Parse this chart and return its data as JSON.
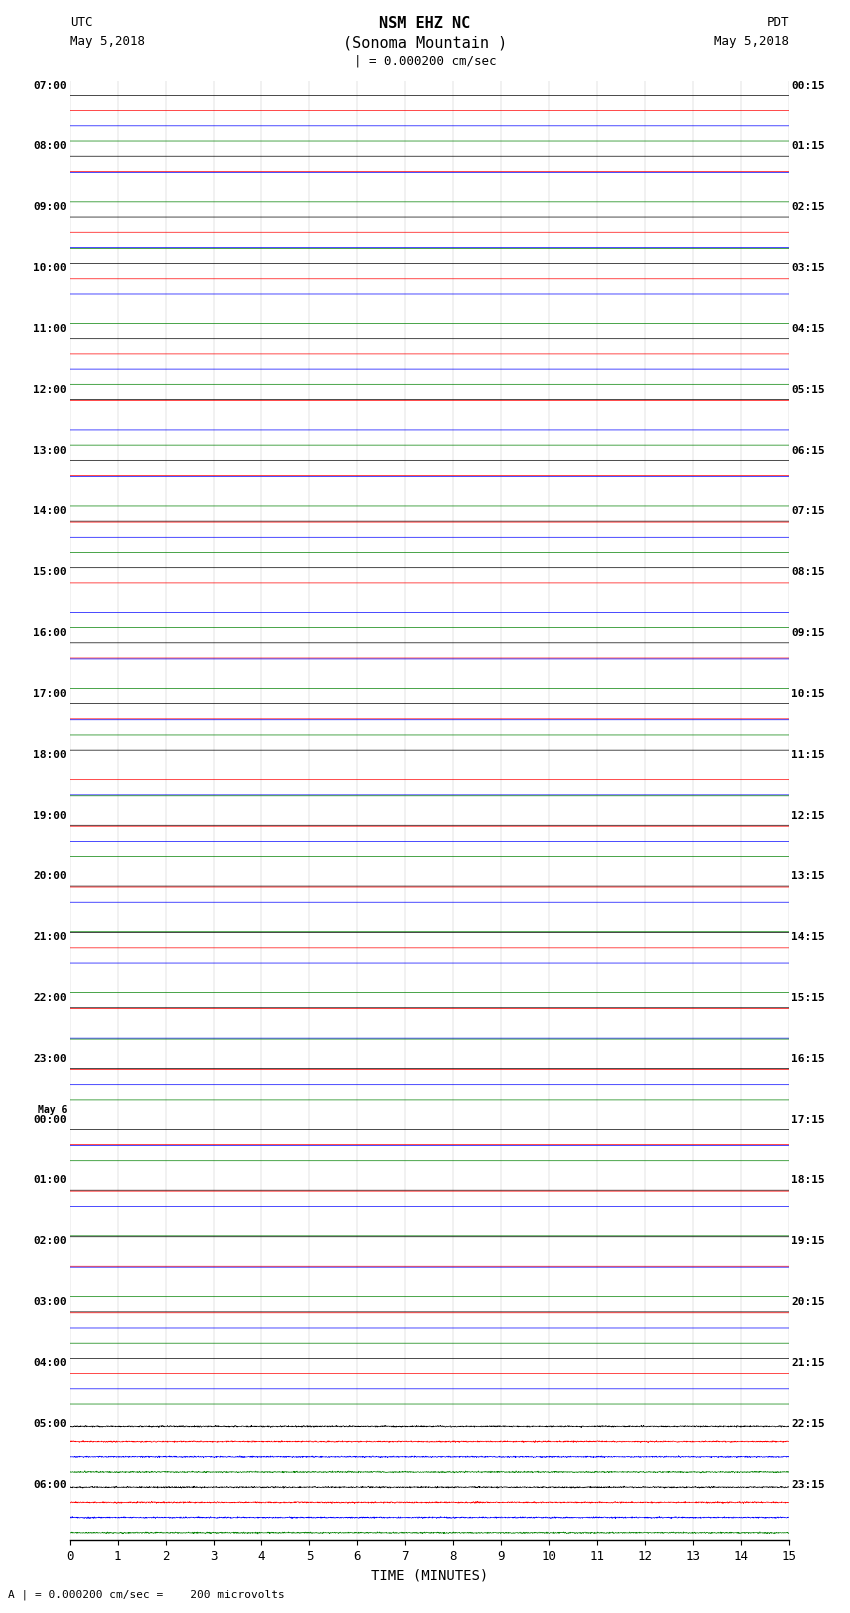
{
  "title_line1": "NSM EHZ NC",
  "title_line2": "(Sonoma Mountain )",
  "scale_label": "| = 0.000200 cm/sec",
  "left_header_line1": "UTC",
  "left_header_line2": "May 5,2018",
  "right_header_line1": "PDT",
  "right_header_line2": "May 5,2018",
  "xlabel": "TIME (MINUTES)",
  "bottom_label": "A | = 0.000200 cm/sec =    200 microvolts",
  "utc_labels": [
    "07:00",
    "08:00",
    "09:00",
    "10:00",
    "11:00",
    "12:00",
    "13:00",
    "14:00",
    "15:00",
    "16:00",
    "17:00",
    "18:00",
    "19:00",
    "20:00",
    "21:00",
    "22:00",
    "23:00",
    "May 6\n00:00",
    "01:00",
    "02:00",
    "03:00",
    "04:00",
    "05:00",
    "06:00"
  ],
  "pdt_labels": [
    "00:15",
    "01:15",
    "02:15",
    "03:15",
    "04:15",
    "05:15",
    "06:15",
    "07:15",
    "08:15",
    "09:15",
    "10:15",
    "11:15",
    "12:15",
    "13:15",
    "14:15",
    "15:15",
    "16:15",
    "17:15",
    "18:15",
    "19:15",
    "20:15",
    "21:15",
    "22:15",
    "23:15"
  ],
  "trace_colors": [
    "black",
    "red",
    "blue",
    "green"
  ],
  "num_groups": 24,
  "traces_per_group": 4,
  "bg_color": "#ffffff",
  "xmin": 0,
  "xmax": 15,
  "xticks": [
    0,
    1,
    2,
    3,
    4,
    5,
    6,
    7,
    8,
    9,
    10,
    11,
    12,
    13,
    14,
    15
  ],
  "amplitude_noise": 0.09,
  "amplitude_event_low": 0.25,
  "amplitude_event_high": 0.45,
  "event_groups_high": [
    15,
    16,
    17,
    18,
    19,
    20
  ],
  "event_groups_med": [
    14,
    21
  ],
  "quiet_after": [
    22,
    23,
    24,
    25,
    26,
    27
  ],
  "trace_linewidth": 0.5
}
